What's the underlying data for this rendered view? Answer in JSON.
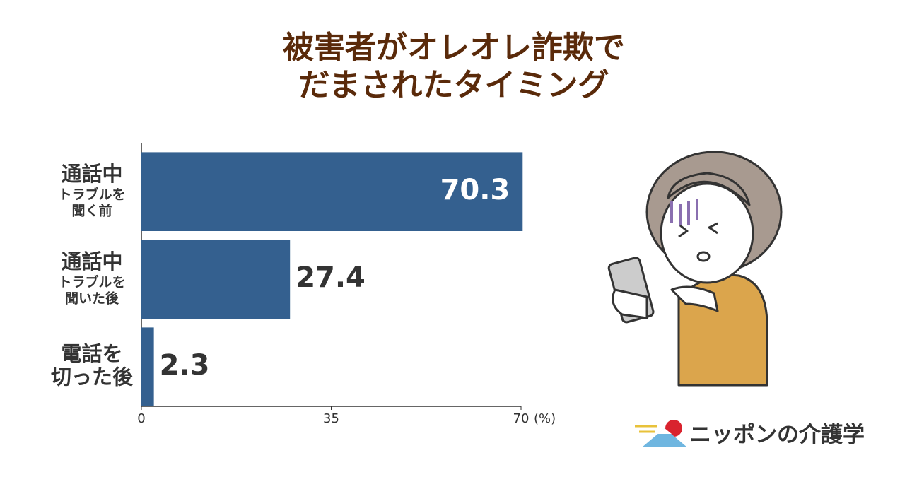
{
  "chart_data": {
    "type": "bar",
    "orientation": "horizontal",
    "title": [
      "被害者がオレオレ詐欺で",
      "だまされたタイミング"
    ],
    "categories": [
      [
        "通話中",
        "トラブルを",
        "聞く前"
      ],
      [
        "通話中",
        "トラブルを",
        "聞いた後"
      ],
      [
        "電話を",
        "切った後"
      ]
    ],
    "values": [
      70.3,
      27.4,
      2.3
    ],
    "color": "#34608f",
    "xlim": [
      0,
      70
    ],
    "xticks": [
      0,
      35,
      70
    ],
    "x_unit": "(%)",
    "brand": "ニッポンの介護学"
  }
}
